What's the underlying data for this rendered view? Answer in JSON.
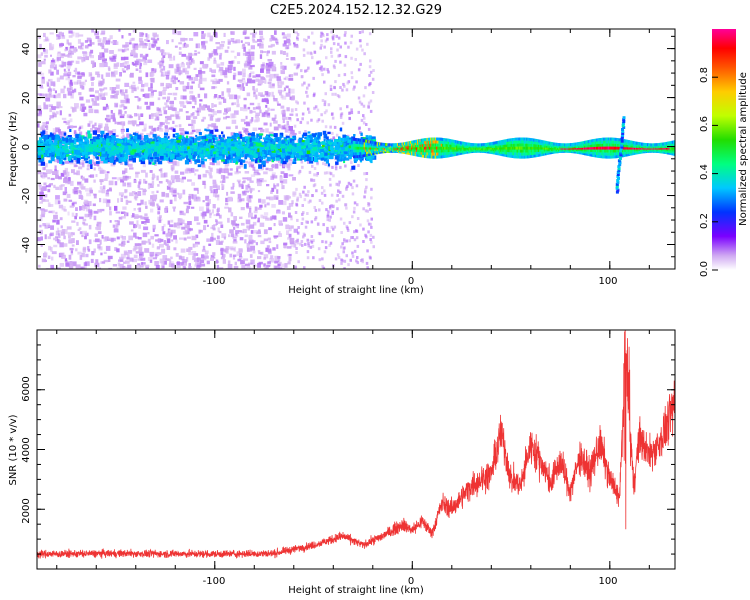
{
  "figure_title": "C2E5.2024.152.12.32.G29",
  "chart_data": [
    {
      "type": "heatmap",
      "xlabel": "Height of straight line (km)",
      "ylabel": "Frequency (Hz)",
      "xlim": [
        -190,
        133
      ],
      "ylim": [
        -50,
        48
      ],
      "xticks": [
        -100,
        0,
        100
      ],
      "yticks": [
        -40,
        -20,
        0,
        20,
        40
      ],
      "xtick_labels": [
        "-100",
        "0",
        "100"
      ],
      "ytick_labels": [
        "-40",
        "-20",
        "0",
        "20",
        "40"
      ],
      "colorbar": {
        "label": "Normalized spectral amplitude",
        "range": [
          0,
          1
        ],
        "ticks": [
          0,
          0.2,
          0.4,
          0.6,
          0.8
        ],
        "tick_labels": [
          "0.0",
          "0.2",
          "0.4",
          "0.6",
          "0.8"
        ],
        "colormap": "rainbow"
      },
      "description_values": {
        "ridge_frequency_hz": 0,
        "ridge_start_height_km": -25,
        "spike_height_km": 105,
        "spike_freq_range_hz": [
          -18,
          13
        ]
      }
    },
    {
      "type": "line",
      "xlabel": "Height of straight line (km)",
      "ylabel": "SNR (10 * v/v)",
      "xlim": [
        -190,
        133
      ],
      "ylim": [
        0,
        8000
      ],
      "xticks": [
        -100,
        0,
        100
      ],
      "yticks": [
        2000,
        4000,
        6000
      ],
      "xtick_labels": [
        "-100",
        "0",
        "100"
      ],
      "ytick_labels": [
        "2000",
        "4000",
        "6000"
      ],
      "line_color": "#ee3333",
      "x": [
        -190,
        -150,
        -100,
        -70,
        -50,
        -35,
        -25,
        -15,
        -5,
        0,
        5,
        10,
        15,
        20,
        30,
        40,
        45,
        50,
        55,
        60,
        65,
        70,
        75,
        80,
        85,
        90,
        95,
        100,
        105,
        108,
        112,
        115,
        120,
        125,
        130,
        133
      ],
      "y": [
        500,
        520,
        500,
        520,
        800,
        1100,
        800,
        1100,
        1500,
        1300,
        1600,
        1200,
        2200,
        2000,
        2800,
        3200,
        4600,
        3000,
        2800,
        4200,
        3600,
        2900,
        3600,
        2600,
        3800,
        3200,
        4200,
        3000,
        2400,
        7500,
        2800,
        4400,
        3800,
        4200,
        5000,
        5500
      ]
    }
  ]
}
